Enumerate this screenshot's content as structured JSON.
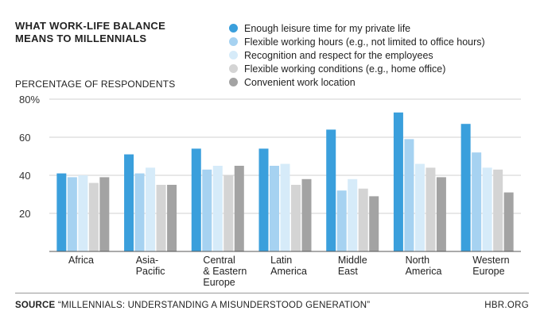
{
  "header": {
    "title": "WHAT WORK-LIFE BALANCE\nMEANS TO MILLENNIALS"
  },
  "footer": {
    "source_label": "SOURCE",
    "source_text": "“MILLENNIALS: UNDERSTANDING A MISUNDERSTOOD GENERATION”",
    "brand": "HBR.ORG"
  },
  "chart_data": {
    "type": "bar",
    "ylabel": "PERCENTAGE OF RESPONDENTS",
    "xlabel": "",
    "ylim": [
      0,
      80
    ],
    "yticks": [
      {
        "value": 20,
        "label": "20"
      },
      {
        "value": 40,
        "label": "40"
      },
      {
        "value": 60,
        "label": "60"
      },
      {
        "value": 80,
        "label": "80%"
      }
    ],
    "grid": true,
    "legend_position": "top-right",
    "categories": [
      [
        "Africa"
      ],
      [
        "Asia-",
        "Pacific"
      ],
      [
        "Central",
        "& Eastern",
        "Europe"
      ],
      [
        "Latin",
        "America"
      ],
      [
        "Middle",
        "East"
      ],
      [
        "North",
        "America"
      ],
      [
        "Western",
        "Europe"
      ]
    ],
    "series": [
      {
        "name": "Enough leisure time for my private life",
        "color": "#3a9fdc",
        "values": [
          41,
          51,
          54,
          54,
          64,
          73,
          67
        ]
      },
      {
        "name": "Flexible working hours (e.g., not limited to office hours)",
        "color": "#a6d2f1",
        "values": [
          39,
          41,
          43,
          45,
          32,
          59,
          52
        ]
      },
      {
        "name": "Recognition and respect for the employees",
        "color": "#d6ebf9",
        "values": [
          40,
          44,
          45,
          46,
          38,
          46,
          44
        ]
      },
      {
        "name": "Flexible working conditions (e.g., home office)",
        "color": "#d4d4d4",
        "values": [
          36,
          35,
          40,
          35,
          33,
          44,
          43
        ]
      },
      {
        "name": "Convenient work location",
        "color": "#a3a3a3",
        "values": [
          39,
          35,
          45,
          38,
          29,
          39,
          31
        ]
      }
    ]
  }
}
